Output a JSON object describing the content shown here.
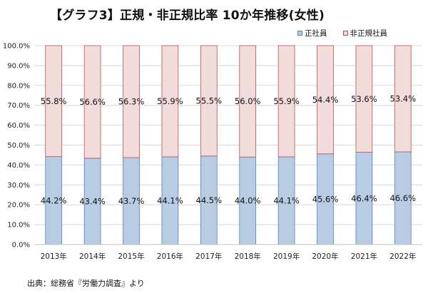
{
  "chart_data": {
    "type": "bar",
    "stacked": true,
    "title": "【グラフ3】正規・非正規比率 10か年推移(女性)",
    "categories": [
      "2013年",
      "2014年",
      "2015年",
      "2016年",
      "2017年",
      "2018年",
      "2019年",
      "2020年",
      "2021年",
      "2022年"
    ],
    "series": [
      {
        "name": "正社員",
        "values": [
          44.2,
          43.4,
          43.7,
          44.1,
          44.5,
          44.0,
          44.1,
          45.6,
          46.4,
          46.6
        ],
        "color": "#b8cce4",
        "border": "#4f81bd"
      },
      {
        "name": "非正規社員",
        "values": [
          55.8,
          56.6,
          56.3,
          55.9,
          55.5,
          56.0,
          55.9,
          54.4,
          53.6,
          53.4
        ],
        "color": "#f2dcdb",
        "border": "#c0504d"
      }
    ],
    "data_labels": {
      "正社員": [
        "44.2%",
        "43.4%",
        "43.7%",
        "44.1%",
        "44.5%",
        "44.0%",
        "44.1%",
        "45.6%",
        "46.4%",
        "46.6%"
      ],
      "非正規社員": [
        "55.8%",
        "56.6%",
        "56.3%",
        "55.9%",
        "55.5%",
        "56.0%",
        "55.9%",
        "54.4%",
        "53.6%",
        "53.4%"
      ]
    },
    "ylim": [
      0,
      100
    ],
    "yticks": [
      0,
      10,
      20,
      30,
      40,
      50,
      60,
      70,
      80,
      90,
      100
    ],
    "yticklabels": [
      "0.0%",
      "10.0%",
      "20.0%",
      "30.0%",
      "40.0%",
      "50.0%",
      "60.0%",
      "70.0%",
      "80.0%",
      "90.0%",
      "100.0%"
    ],
    "xlabel": "",
    "ylabel": "",
    "grid": true,
    "legend_position": "top-right"
  },
  "source": "出典：総務省『労働力調査』より"
}
